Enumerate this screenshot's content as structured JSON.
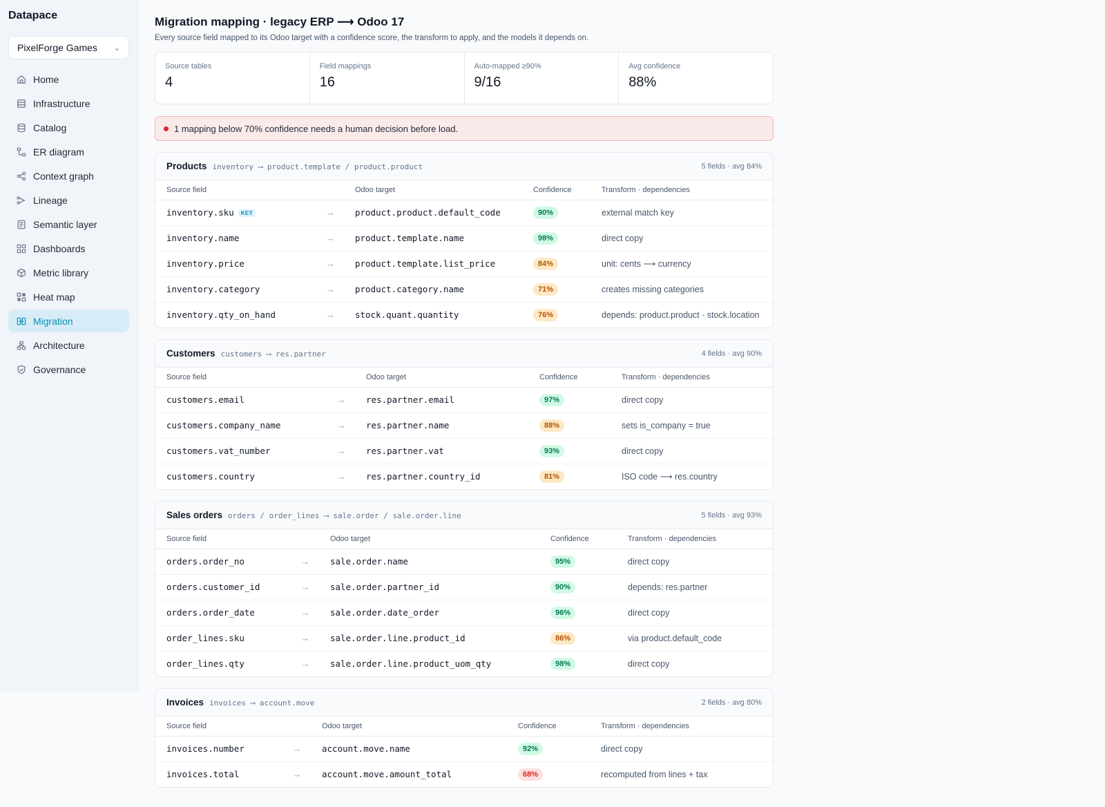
{
  "app": {
    "brand": "Datapace",
    "workspace": "PixelForge Games"
  },
  "nav": [
    {
      "label": "Home",
      "icon": "home-icon"
    },
    {
      "label": "Infrastructure",
      "icon": "server-icon"
    },
    {
      "label": "Catalog",
      "icon": "database-icon"
    },
    {
      "label": "ER diagram",
      "icon": "er-diagram-icon"
    },
    {
      "label": "Context graph",
      "icon": "share-icon"
    },
    {
      "label": "Lineage",
      "icon": "lineage-icon"
    },
    {
      "label": "Semantic layer",
      "icon": "document-icon"
    },
    {
      "label": "Dashboards",
      "icon": "grid-icon"
    },
    {
      "label": "Metric library",
      "icon": "cube-icon"
    },
    {
      "label": "Heat map",
      "icon": "heatmap-icon"
    },
    {
      "label": "Migration",
      "icon": "migration-icon",
      "active": true
    },
    {
      "label": "Architecture",
      "icon": "architecture-icon"
    },
    {
      "label": "Governance",
      "icon": "shield-icon"
    }
  ],
  "page": {
    "title": "Migration mapping · legacy ERP ⟶ Odoo 17",
    "subtitle": "Every source field mapped to its Odoo target with a confidence score, the transform to apply, and the models it depends on."
  },
  "stats": [
    {
      "label": "Source tables",
      "value": "4"
    },
    {
      "label": "Field mappings",
      "value": "16"
    },
    {
      "label": "Auto-mapped ≥90%",
      "value": "9/16"
    },
    {
      "label": "Avg confidence",
      "value": "88%"
    }
  ],
  "alert": {
    "text": "1 mapping below 70% confidence needs a human decision before load."
  },
  "columns": {
    "source": "Source field",
    "target": "Odoo target",
    "confidence": "Confidence",
    "transform": "Transform · dependencies"
  },
  "arrow": "→",
  "key_badge": "KEY",
  "sections": [
    {
      "title": "Products",
      "path": "inventory ⟶ product.template / product.product",
      "meta": "5 fields · avg 84%",
      "rows": [
        {
          "source": "inventory.sku",
          "key": true,
          "target": "product.product.default_code",
          "confidence": "90%",
          "level": "high",
          "transform": "external match key"
        },
        {
          "source": "inventory.name",
          "target": "product.template.name",
          "confidence": "98%",
          "level": "high",
          "transform": "direct copy"
        },
        {
          "source": "inventory.price",
          "target": "product.template.list_price",
          "confidence": "84%",
          "level": "mid",
          "transform": "unit: cents ⟶ currency"
        },
        {
          "source": "inventory.category",
          "target": "product.category.name",
          "confidence": "71%",
          "level": "mid",
          "transform": "creates missing categories"
        },
        {
          "source": "inventory.qty_on_hand",
          "target": "stock.quant.quantity",
          "confidence": "76%",
          "level": "mid",
          "transform": "depends: product.product · stock.location"
        }
      ]
    },
    {
      "title": "Customers",
      "path": "customers ⟶ res.partner",
      "meta": "4 fields · avg 90%",
      "rows": [
        {
          "source": "customers.email",
          "target": "res.partner.email",
          "confidence": "97%",
          "level": "high",
          "transform": "direct copy"
        },
        {
          "source": "customers.company_name",
          "target": "res.partner.name",
          "confidence": "88%",
          "level": "mid",
          "transform": "sets is_company = true"
        },
        {
          "source": "customers.vat_number",
          "target": "res.partner.vat",
          "confidence": "93%",
          "level": "high",
          "transform": "direct copy"
        },
        {
          "source": "customers.country",
          "target": "res.partner.country_id",
          "confidence": "81%",
          "level": "mid",
          "transform": "ISO code ⟶ res.country"
        }
      ]
    },
    {
      "title": "Sales orders",
      "path": "orders / order_lines ⟶ sale.order / sale.order.line",
      "meta": "5 fields · avg 93%",
      "rows": [
        {
          "source": "orders.order_no",
          "target": "sale.order.name",
          "confidence": "95%",
          "level": "high",
          "transform": "direct copy"
        },
        {
          "source": "orders.customer_id",
          "target": "sale.order.partner_id",
          "confidence": "90%",
          "level": "high",
          "transform": "depends: res.partner"
        },
        {
          "source": "orders.order_date",
          "target": "sale.order.date_order",
          "confidence": "96%",
          "level": "high",
          "transform": "direct copy"
        },
        {
          "source": "order_lines.sku",
          "target": "sale.order.line.product_id",
          "confidence": "86%",
          "level": "mid",
          "transform": "via product.default_code"
        },
        {
          "source": "order_lines.qty",
          "target": "sale.order.line.product_uom_qty",
          "confidence": "98%",
          "level": "high",
          "transform": "direct copy"
        }
      ]
    },
    {
      "title": "Invoices",
      "path": "invoices ⟶ account.move",
      "meta": "2 fields · avg 80%",
      "rows": [
        {
          "source": "invoices.number",
          "target": "account.move.name",
          "confidence": "92%",
          "level": "high",
          "transform": "direct copy"
        },
        {
          "source": "invoices.total",
          "target": "account.move.amount_total",
          "confidence": "68%",
          "level": "low",
          "transform": "recomputed from lines + tax"
        }
      ]
    }
  ]
}
